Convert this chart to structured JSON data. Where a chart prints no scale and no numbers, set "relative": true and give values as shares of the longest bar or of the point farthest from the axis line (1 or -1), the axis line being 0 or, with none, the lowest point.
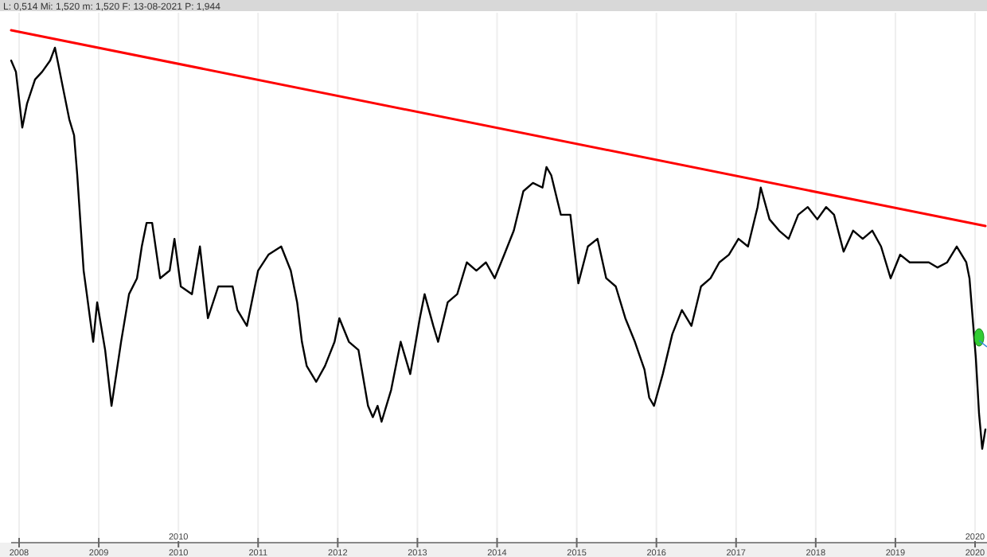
{
  "chart_data": {
    "type": "line",
    "relative": true,
    "title": "L: 0,514  Mi: 1,520  m: 1,520  F: 13-08-2021  P: 1,944",
    "xlim": [
      2007.9,
      2020.15
    ],
    "xticks": [
      2008,
      2009,
      2010,
      2011,
      2012,
      2013,
      2014,
      2015,
      2016,
      2017,
      2018,
      2019,
      2020
    ],
    "annotations": [
      "2010",
      "2020"
    ],
    "grid": "x",
    "marker": "none",
    "line_style": "solid",
    "series": [
      {
        "color": "#000000",
        "x": [
          2007.9,
          2007.96,
          2008.04,
          2008.1,
          2008.2,
          2008.29,
          2008.39,
          2008.45,
          2008.49,
          2008.55,
          2008.63,
          2008.69,
          2008.73,
          2008.77,
          2008.81,
          2008.85,
          2008.89,
          2008.93,
          2008.98,
          2009.08,
          2009.16,
          2009.22,
          2009.28,
          2009.38,
          2009.48,
          2009.54,
          2009.6,
          2009.67,
          2009.77,
          2009.89,
          2009.95,
          2010.03,
          2010.17,
          2010.27,
          2010.37,
          2010.5,
          2010.68,
          2010.74,
          2010.86,
          2011.0,
          2011.13,
          2011.29,
          2011.41,
          2011.49,
          2011.55,
          2011.61,
          2011.73,
          2011.84,
          2011.96,
          2012.02,
          2012.14,
          2012.26,
          2012.38,
          2012.44,
          2012.5,
          2012.55,
          2012.67,
          2012.79,
          2012.91,
          2013.03,
          2013.09,
          2013.2,
          2013.26,
          2013.38,
          2013.5,
          2013.62,
          2013.74,
          2013.86,
          2013.97,
          2014.09,
          2014.21,
          2014.33,
          2014.45,
          2014.57,
          2014.62,
          2014.68,
          2014.8,
          2014.92,
          2015.02,
          2015.14,
          2015.26,
          2015.37,
          2015.49,
          2015.61,
          2015.73,
          2015.85,
          2015.91,
          2015.97,
          2016.08,
          2016.2,
          2016.32,
          2016.44,
          2016.56,
          2016.68,
          2016.79,
          2016.91,
          2017.03,
          2017.15,
          2017.27,
          2017.31,
          2017.42,
          2017.54,
          2017.66,
          2017.78,
          2017.9,
          2018.02,
          2018.13,
          2018.23,
          2018.35,
          2018.47,
          2018.59,
          2018.71,
          2018.82,
          2018.94,
          2019.06,
          2019.18,
          2019.3,
          2019.42,
          2019.53,
          2019.65,
          2019.77,
          2019.89,
          2019.93,
          2019.97,
          2020.01,
          2020.05,
          2020.09,
          2020.13
        ],
        "values": [
          0.941,
          0.919,
          0.81,
          0.857,
          0.904,
          0.919,
          0.941,
          0.966,
          0.935,
          0.888,
          0.826,
          0.795,
          0.717,
          0.624,
          0.531,
          0.485,
          0.438,
          0.392,
          0.469,
          0.376,
          0.267,
          0.329,
          0.392,
          0.485,
          0.516,
          0.578,
          0.624,
          0.624,
          0.516,
          0.531,
          0.593,
          0.5,
          0.485,
          0.578,
          0.438,
          0.5,
          0.5,
          0.454,
          0.423,
          0.531,
          0.562,
          0.578,
          0.531,
          0.469,
          0.392,
          0.345,
          0.314,
          0.345,
          0.392,
          0.438,
          0.392,
          0.376,
          0.267,
          0.245,
          0.267,
          0.236,
          0.298,
          0.392,
          0.329,
          0.438,
          0.485,
          0.423,
          0.392,
          0.469,
          0.485,
          0.547,
          0.531,
          0.547,
          0.516,
          0.562,
          0.609,
          0.686,
          0.702,
          0.693,
          0.733,
          0.717,
          0.64,
          0.64,
          0.506,
          0.578,
          0.593,
          0.516,
          0.5,
          0.438,
          0.392,
          0.338,
          0.283,
          0.267,
          0.329,
          0.407,
          0.454,
          0.423,
          0.5,
          0.516,
          0.547,
          0.562,
          0.593,
          0.578,
          0.655,
          0.693,
          0.631,
          0.609,
          0.593,
          0.64,
          0.655,
          0.631,
          0.655,
          0.64,
          0.568,
          0.609,
          0.593,
          0.609,
          0.578,
          0.516,
          0.562,
          0.547,
          0.547,
          0.547,
          0.537,
          0.547,
          0.578,
          0.547,
          0.516,
          0.438,
          0.36,
          0.252,
          0.183,
          0.221
        ]
      },
      {
        "type": "line",
        "color": "#ff0000",
        "x": [
          2007.9,
          2020.13
        ],
        "values": [
          1,
          0.618
        ]
      }
    ]
  }
}
